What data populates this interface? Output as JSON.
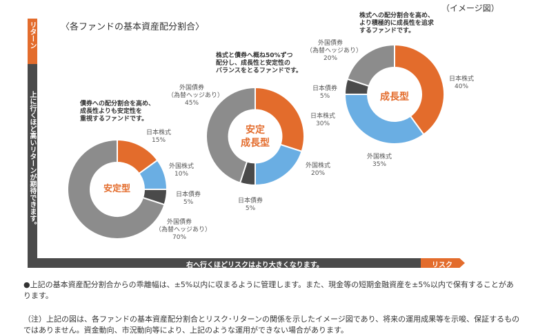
{
  "image_note": "（イメージ図）",
  "title": "〈各ファンドの基本資産配分割合〉",
  "y_axis": {
    "label": "リターン",
    "description": "上に行くほど高いリターンが期待できます。"
  },
  "x_axis": {
    "label": "リスク",
    "description": "右へ行くほどリスクはより大きくなります。"
  },
  "colors": {
    "orange": "#e36c2c",
    "blue": "#6aaee3",
    "dark": "#4a4a4a",
    "gray": "#8c8c8c"
  },
  "chart_data": {
    "type": "pie",
    "variant": "donut",
    "title": "〈各ファンドの基本資産配分割合〉",
    "funds": [
      {
        "name_lines": [
          "安定型"
        ],
        "description_lines": [
          "債券への配分割合を高め、",
          "成長性よりも安定性を",
          "重視するファンドです。"
        ],
        "slices": [
          {
            "label": "日本株式",
            "value": 15
          },
          {
            "label": "外国株式",
            "value": 10
          },
          {
            "label": "日本債券",
            "value": 5
          },
          {
            "label": "外国債券",
            "sublabel": "（為替ヘッジあり）",
            "value": 70
          }
        ]
      },
      {
        "name_lines": [
          "安定",
          "成長型"
        ],
        "description_lines": [
          "株式と債券へ概ね50%ずつ",
          "配分し、成長性と安定性の",
          "バランスをとるファンドです。"
        ],
        "slices": [
          {
            "label": "日本株式",
            "value": 30
          },
          {
            "label": "外国株式",
            "value": 20
          },
          {
            "label": "日本債券",
            "value": 5
          },
          {
            "label": "外国債券",
            "sublabel": "（為替ヘッジあり）",
            "value": 45
          }
        ]
      },
      {
        "name_lines": [
          "成長型"
        ],
        "description_lines": [
          "株式への配分割合を高め、",
          "より積極的に成長性を追求",
          "するファンドです。"
        ],
        "slices": [
          {
            "label": "日本株式",
            "value": 40
          },
          {
            "label": "外国株式",
            "value": 35
          },
          {
            "label": "日本債券",
            "value": 5
          },
          {
            "label": "外国債券",
            "sublabel": "（為替ヘッジあり）",
            "value": 20
          }
        ]
      }
    ]
  },
  "notes": {
    "note1": "●上記の基本資産配分割合からの乖離幅は、±5%以内に収まるように管理します。また、現金等の短期金融資産を±5%以内で保有することがあります。",
    "note2": "（注）上記の図は、各ファンドの基本資産配分割合とリスク･リターンの関係を示したイメージ図であり、将来の運用成果等を示唆、保証するものではありません。資金動向、市況動向等により、上記のような運用ができない場合があります。"
  }
}
